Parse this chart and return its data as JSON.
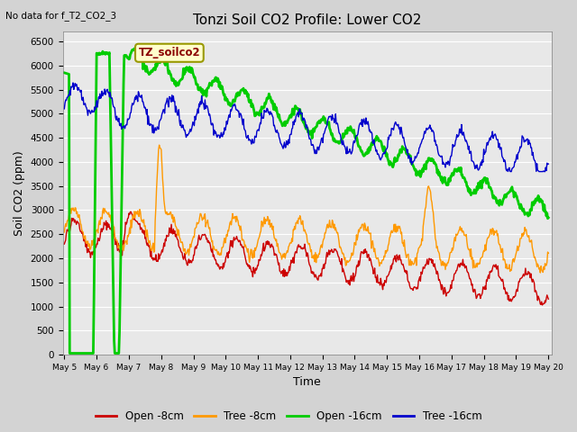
{
  "title": "Tonzi Soil CO2 Profile: Lower CO2",
  "xlabel": "Time",
  "ylabel": "Soil CO2 (ppm)",
  "top_left_text": "No data for f_T2_CO2_3",
  "annotation_label": "TZ_soilco2",
  "ylim": [
    0,
    6700
  ],
  "yticks": [
    0,
    500,
    1000,
    1500,
    2000,
    2500,
    3000,
    3500,
    4000,
    4500,
    5000,
    5500,
    6000,
    6500
  ],
  "xtick_labels": [
    "May 5",
    "May 6",
    "May 7",
    "May 8",
    "May 9",
    "May 10",
    "May 11",
    "May 12",
    "May 13",
    "May 14",
    "May 15",
    "May 16",
    "May 17",
    "May 18",
    "May 19",
    "May 20"
  ],
  "line_colors": {
    "open8": "#cc0000",
    "tree8": "#ff9900",
    "open16": "#00cc00",
    "tree16": "#0000cc"
  },
  "legend_labels": [
    "Open -8cm",
    "Tree -8cm",
    "Open -16cm",
    "Tree -16cm"
  ],
  "fig_bg_color": "#d3d3d3",
  "plot_bg_color": "#e8e8e8",
  "grid_color": "#ffffff",
  "title_fontsize": 11,
  "axis_label_fontsize": 9
}
